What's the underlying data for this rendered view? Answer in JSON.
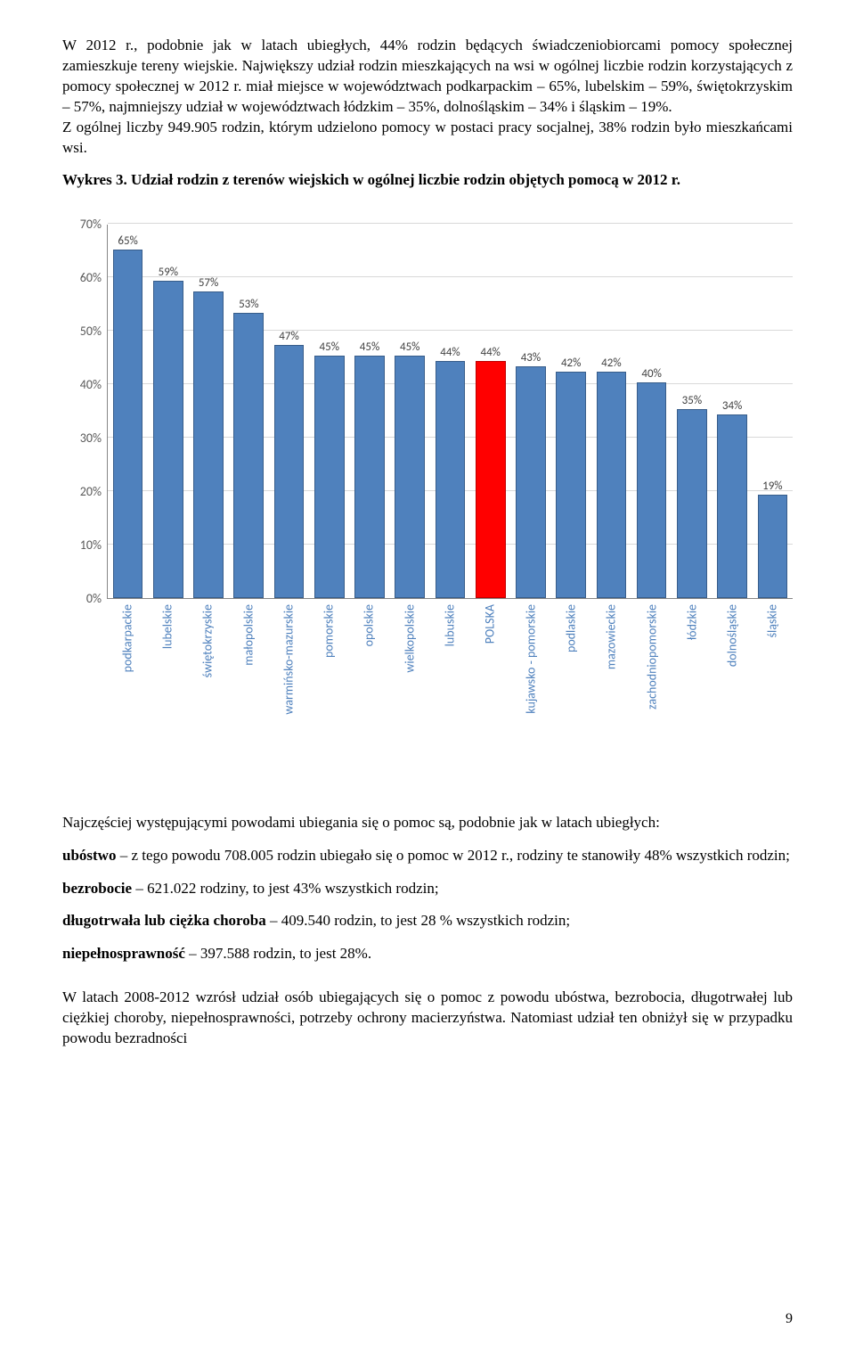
{
  "text": {
    "p1": "W 2012 r., podobnie jak w latach ubiegłych, 44% rodzin będących świadczeniobiorcami pomocy społecznej zamieszkuje tereny wiejskie. Największy udział rodzin mieszkających na wsi w ogólnej liczbie rodzin korzystających z pomocy społecznej w 2012 r. miał miejsce w województwach podkarpackim – 65%, lubelskim – 59%, świętokrzyskim – 57%, najmniejszy udział w województwach łódzkim – 35%, dolnośląskim – 34% i śląskim – 19%.",
    "p1b": "Z ogólnej liczby 949.905 rodzin, którym udzielono pomocy w postaci pracy socjalnej, 38% rodzin było mieszkańcami wsi.",
    "chart_title": "Wykres 3. Udział rodzin z terenów wiejskich w ogólnej liczbie rodzin objętych pomocą w 2012 r.",
    "p2": "Najczęściej występującymi powodami ubiegania się o pomoc są, podobnie jak w latach ubiegłych:",
    "line_ubostwo_b": "ubóstwo",
    "line_ubostwo_rest": " – z tego powodu 708.005 rodzin ubiegało się o pomoc w 2012 r., rodziny te stanowiły 48% wszystkich rodzin;",
    "line_bezrob_b": "bezrobocie",
    "line_bezrob_rest": " – 621.022 rodziny, to jest 43% wszystkich rodzin;",
    "line_choroba_b": "długotrwała lub ciężka choroba",
    "line_choroba_rest": " – 409.540 rodzin, to jest 28 % wszystkich rodzin;",
    "line_niepeln_b": "niepełnosprawność",
    "line_niepeln_rest": " – 397.588 rodzin, to jest 28%.",
    "p3": "W latach 2008-2012 wzrósł udział osób ubiegających się o pomoc z powodu ubóstwa, bezrobocia, długotrwałej lub ciężkiej choroby, niepełnosprawności, potrzeby ochrony macierzyństwa. Natomiast udział ten obniżył się w przypadku powodu bezradności",
    "page_num": "9"
  },
  "chart": {
    "type": "bar",
    "y_ticks": [
      0,
      10,
      20,
      30,
      40,
      50,
      60,
      70
    ],
    "y_tick_labels": [
      "0%",
      "10%",
      "20%",
      "30%",
      "40%",
      "50%",
      "60%",
      "70%"
    ],
    "y_max": 70,
    "bar_fill": "#4f81bd",
    "bar_border": "#385d8a",
    "highlight_fill": "#ff0000",
    "highlight_border": "#be0000",
    "grid_color": "#d9d9d9",
    "axis_color": "#868686",
    "label_color": "#404040",
    "xlabel_color": "#4f81bd",
    "bars": [
      {
        "cat": "podkarpackie",
        "val": 65,
        "label": "65%",
        "hl": false
      },
      {
        "cat": "lubelskie",
        "val": 59,
        "label": "59%",
        "hl": false
      },
      {
        "cat": "świętokrzyskie",
        "val": 57,
        "label": "57%",
        "hl": false
      },
      {
        "cat": "małopolskie",
        "val": 53,
        "label": "53%",
        "hl": false
      },
      {
        "cat": "warmińsko-mazurskie",
        "val": 47,
        "label": "47%",
        "hl": false
      },
      {
        "cat": "pomorskie",
        "val": 45,
        "label": "45%",
        "hl": false
      },
      {
        "cat": "opolskie",
        "val": 45,
        "label": "45%",
        "hl": false
      },
      {
        "cat": "wielkopolskie",
        "val": 45,
        "label": "45%",
        "hl": false
      },
      {
        "cat": "lubuskie",
        "val": 44,
        "label": "44%",
        "hl": false
      },
      {
        "cat": "POLSKA",
        "val": 44,
        "label": "44%",
        "hl": true
      },
      {
        "cat": "kujawsko - pomorskie",
        "val": 43,
        "label": "43%",
        "hl": false
      },
      {
        "cat": "podlaskie",
        "val": 42,
        "label": "42%",
        "hl": false
      },
      {
        "cat": "mazowieckie",
        "val": 42,
        "label": "42%",
        "hl": false
      },
      {
        "cat": "zachodniopomorskie",
        "val": 40,
        "label": "40%",
        "hl": false
      },
      {
        "cat": "łódzkie",
        "val": 35,
        "label": "35%",
        "hl": false
      },
      {
        "cat": "dolnośląskie",
        "val": 34,
        "label": "34%",
        "hl": false
      },
      {
        "cat": "śląskie",
        "val": 19,
        "label": "19%",
        "hl": false
      }
    ]
  }
}
